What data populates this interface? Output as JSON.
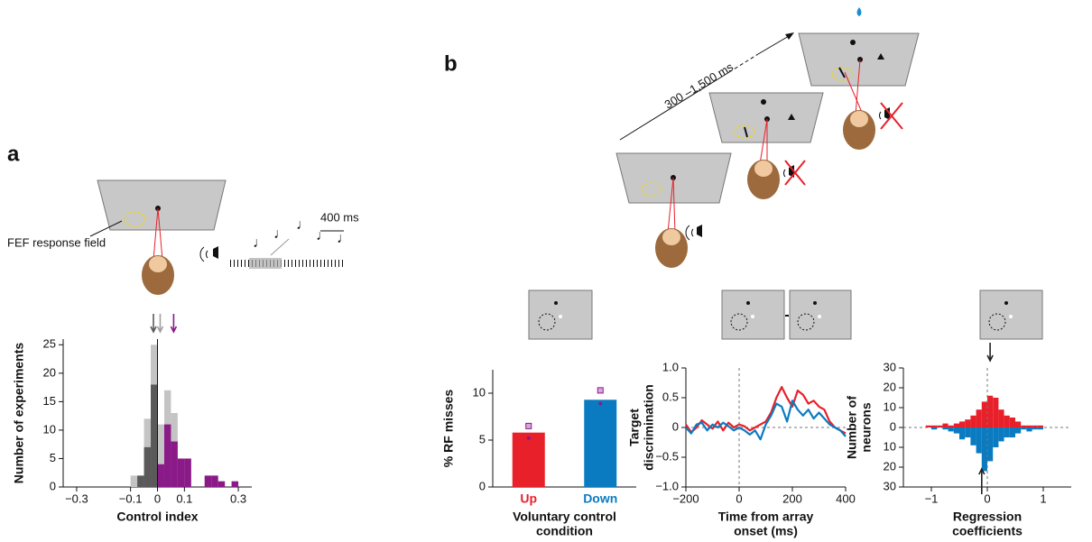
{
  "labels": {
    "panel_a": "a",
    "panel_b": "b",
    "rf_label": "FEF response field",
    "scale": "400 ms",
    "delay": "300 –1,500 ms"
  },
  "chart_data": [
    {
      "type": "histogram",
      "xlabel": [
        "Control index"
      ],
      "ylabel": [
        "Number of experiments"
      ],
      "bins": [
        -0.1,
        -0.075,
        -0.05,
        -0.025,
        0,
        0.025,
        0.05,
        0.075,
        0.1,
        0.125,
        0.15,
        0.175,
        0.2,
        0.225,
        0.25,
        0.275,
        0.3
      ],
      "series": [
        {
          "color": "#c4c4c4",
          "values": [
            2,
            2,
            12,
            25,
            11,
            17,
            13,
            5,
            5,
            0,
            0,
            2,
            2,
            1,
            0,
            1
          ]
        },
        {
          "color": "#5a5a5a",
          "values": [
            0,
            2,
            7,
            18,
            0,
            0,
            0,
            0,
            0,
            0,
            0,
            0,
            0,
            0,
            0,
            0
          ]
        },
        {
          "color": "#8b1a89",
          "values": [
            0,
            0,
            0,
            0,
            4,
            11,
            8,
            5,
            5,
            0,
            0,
            2,
            2,
            1,
            0,
            1
          ]
        }
      ],
      "arrows": [
        {
          "value": -0.015,
          "color": "#5a5a5a",
          "side": "top"
        },
        {
          "value": 0.01,
          "color": "#a0a0a0",
          "side": "top"
        },
        {
          "value": 0.06,
          "color": "#8b1a89",
          "side": "top"
        }
      ],
      "vline": 0,
      "xlim": [
        -0.35,
        0.35
      ],
      "xticks": [
        {
          "value": -0.3,
          "label": "−0.3"
        },
        {
          "value": -0.1,
          "label": "−0.1"
        },
        0,
        0.1,
        0.3
      ],
      "ylim": [
        0,
        26
      ],
      "yticks": [
        0,
        5,
        10,
        15,
        20,
        25
      ]
    },
    {
      "type": "bar",
      "xlabel": [
        "Voluntary control",
        "condition"
      ],
      "ylabel": [
        "% RF misses"
      ],
      "categories": [
        "Up",
        "Down"
      ],
      "colors": [
        "#e8202a",
        "#0a7bc1"
      ],
      "values": [
        5.8,
        9.3
      ],
      "square_values": [
        6.5,
        10.3
      ],
      "dot_values": [
        5.2,
        8.9
      ],
      "ylim": [
        0,
        12.5
      ],
      "yticks": [
        0,
        5,
        10
      ]
    },
    {
      "type": "line",
      "xlabel": [
        "Time from array",
        "onset (ms)"
      ],
      "ylabel": [
        "Target",
        "discrimination"
      ],
      "x": [
        -200,
        -180,
        -160,
        -140,
        -120,
        -100,
        -80,
        -60,
        -40,
        -20,
        0,
        20,
        40,
        60,
        80,
        100,
        120,
        140,
        160,
        180,
        200,
        220,
        240,
        260,
        280,
        300,
        320,
        340,
        360,
        380,
        400
      ],
      "series": [
        {
          "color": "#e8202a",
          "values": [
            0.05,
            -0.08,
            0.0,
            0.12,
            0.05,
            -0.02,
            0.1,
            -0.05,
            0.08,
            0.0,
            0.05,
            0.02,
            -0.05,
            0.0,
            0.05,
            0.1,
            0.25,
            0.5,
            0.68,
            0.5,
            0.35,
            0.62,
            0.55,
            0.4,
            0.45,
            0.35,
            0.3,
            0.1,
            0.0,
            -0.05,
            -0.1
          ]
        },
        {
          "color": "#0a7bc1",
          "values": [
            0.0,
            -0.1,
            0.05,
            0.08,
            -0.05,
            0.05,
            0.0,
            0.08,
            0.02,
            -0.05,
            0.0,
            -0.05,
            -0.12,
            -0.05,
            -0.2,
            0.05,
            0.2,
            0.4,
            0.35,
            0.1,
            0.45,
            0.3,
            0.2,
            0.3,
            0.15,
            0.25,
            0.15,
            0.05,
            0.0,
            -0.05,
            -0.15
          ]
        }
      ],
      "vline": 0,
      "hline": 0,
      "xlim": [
        -200,
        400
      ],
      "xticks": [
        {
          "value": -200,
          "label": "−200"
        },
        0,
        200,
        400
      ],
      "ylim": [
        -1,
        1
      ],
      "yticks": [
        {
          "value": -1,
          "label": "−1.0"
        },
        {
          "value": -0.5,
          "label": "−0.5"
        },
        0,
        0.5,
        {
          "value": 1,
          "label": "1.0"
        }
      ]
    },
    {
      "type": "histogram",
      "xlabel": [
        "Regression",
        "coefficients"
      ],
      "ylabel": [
        "Number of",
        "neurons"
      ],
      "bins": [
        -1.2,
        -1.1,
        -1.0,
        -0.9,
        -0.8,
        -0.7,
        -0.6,
        -0.5,
        -0.4,
        -0.3,
        -0.2,
        -0.1,
        0,
        0.1,
        0.2,
        0.3,
        0.4,
        0.5,
        0.6,
        0.7,
        0.8,
        0.9,
        1.0,
        1.1,
        1.2
      ],
      "series": [
        {
          "color": "#e8202a",
          "values": [
            0,
            1,
            1,
            1,
            2,
            1,
            2,
            3,
            4,
            6,
            9,
            13,
            16,
            15,
            9,
            6,
            5,
            3,
            1,
            1,
            1,
            1,
            0,
            0
          ]
        },
        {
          "color": "#0a7bc1",
          "values": [
            0,
            0,
            -1,
            0,
            -1,
            -2,
            -3,
            -6,
            -5,
            -9,
            -13,
            -22,
            -17,
            -10,
            -7,
            -5,
            -5,
            -3,
            -1,
            -2,
            -1,
            -1,
            0,
            0
          ]
        }
      ],
      "arrows": [
        {
          "value": 0.05,
          "color": "#222",
          "side": "top"
        },
        {
          "value": -0.1,
          "color": "#222",
          "side": "bottom"
        }
      ],
      "vline": 0,
      "hline": 0,
      "xlim": [
        -1.5,
        1.5
      ],
      "xticks": [
        {
          "value": -1,
          "label": "−1"
        },
        0,
        1
      ],
      "ylim": [
        -30,
        30
      ],
      "yticks": [
        {
          "value": -30,
          "label": "30"
        },
        {
          "value": -20,
          "label": "20"
        },
        {
          "value": -10,
          "label": "10"
        },
        0,
        10,
        20,
        30
      ]
    }
  ]
}
